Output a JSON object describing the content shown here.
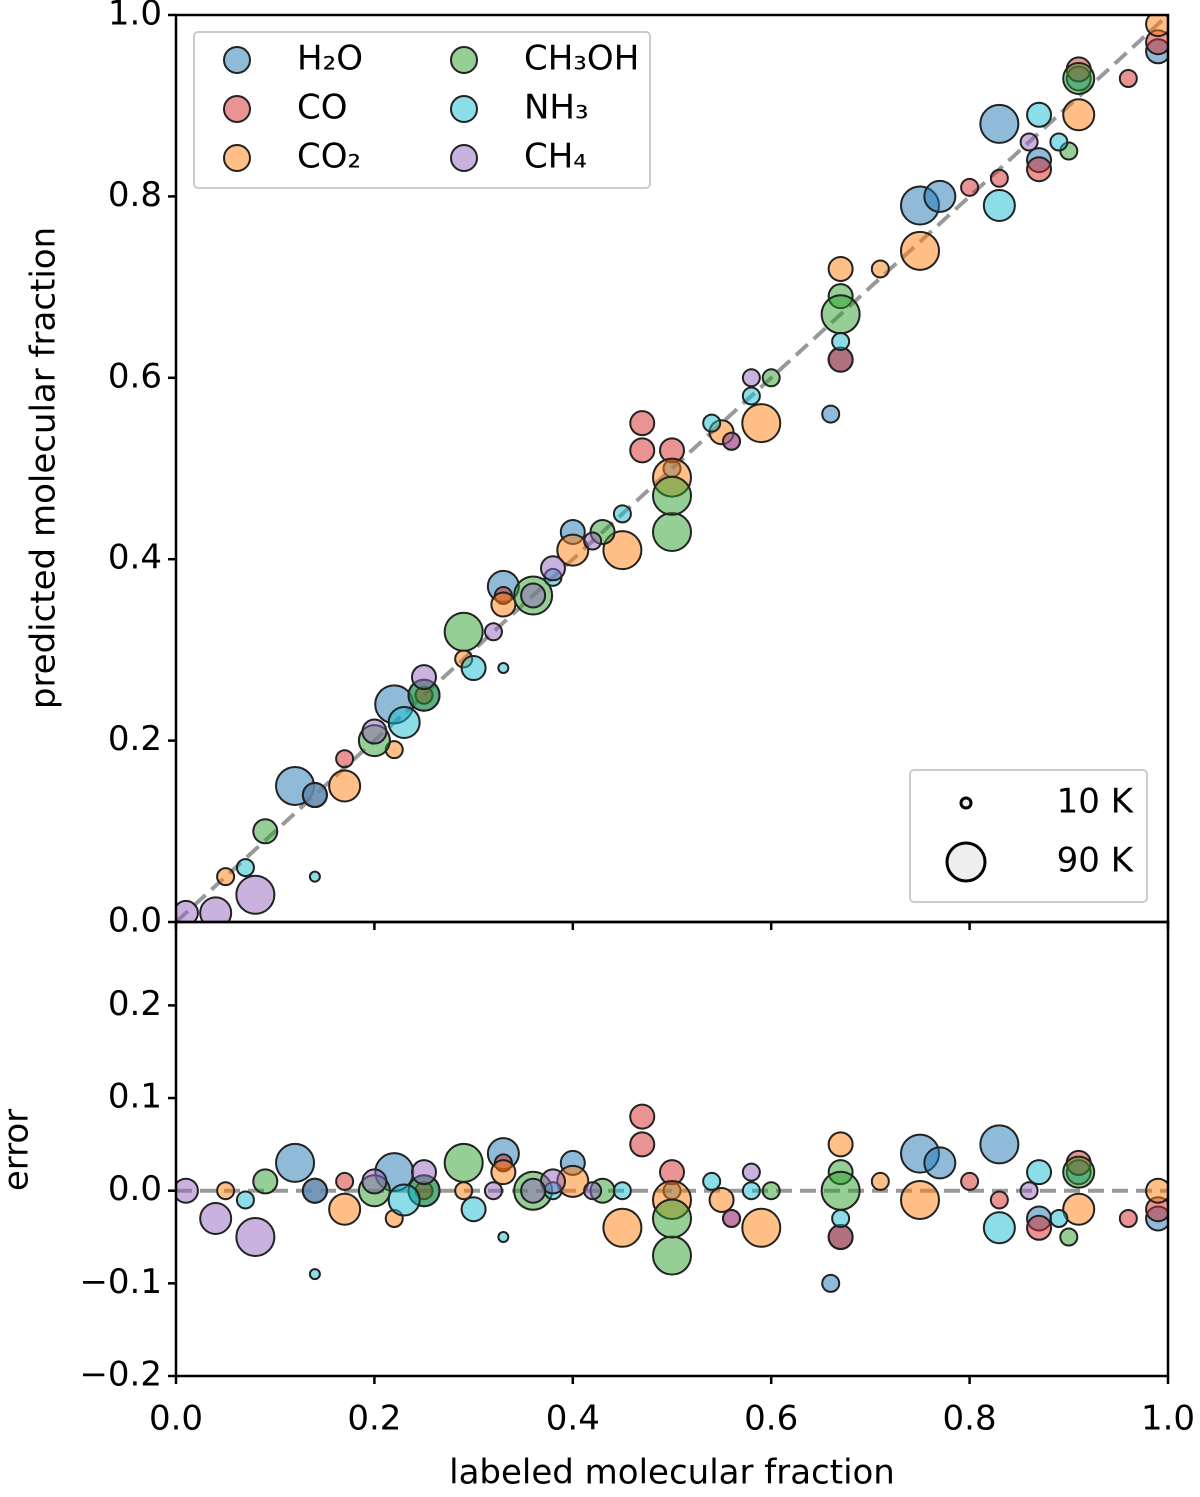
{
  "chart_data": [
    {
      "type": "scatter",
      "ylabel": "predicted molecular fraction",
      "xlim": [
        0,
        1
      ],
      "ylim": [
        0,
        1
      ],
      "xticks": [
        {
          "value": 0,
          "label": "0.0"
        },
        0.2,
        0.4,
        0.6,
        0.8,
        {
          "value": 1,
          "label": "1.0"
        }
      ],
      "yticks": [
        {
          "value": 0,
          "label": "0.0"
        },
        0.2,
        0.4,
        0.6,
        0.8,
        {
          "value": 1,
          "label": "1.0"
        }
      ],
      "legend": "upper left",
      "size_legend": [
        {
          "label": "10 K",
          "value": 10
        },
        {
          "label": "90 K",
          "value": 90
        }
      ],
      "series": [
        {
          "name": "H₂O",
          "color": "#1f77b4",
          "x": [
            0.12,
            0.22,
            0.33,
            0.4,
            0.5,
            0.67,
            0.75,
            0.77,
            0.83,
            0.87,
            0.91,
            0.99,
            0.66,
            0.25
          ],
          "y": [
            0.15,
            0.24,
            0.37,
            0.43,
            0.5,
            0.62,
            0.79,
            0.8,
            0.88,
            0.84,
            0.93,
            0.96,
            0.56,
            0.25
          ],
          "sizes": [
            90,
            90,
            70,
            50,
            30,
            50,
            90,
            70,
            90,
            50,
            50,
            50,
            30,
            70
          ]
        },
        {
          "name": "CO",
          "color": "#d62728",
          "x": [
            0.17,
            0.33,
            0.47,
            0.47,
            0.5,
            0.67,
            0.8,
            0.83,
            0.87,
            0.96,
            0.99,
            0.25,
            0.56,
            0.91
          ],
          "y": [
            0.18,
            0.36,
            0.55,
            0.52,
            0.52,
            0.62,
            0.81,
            0.82,
            0.83,
            0.93,
            0.97,
            0.25,
            0.53,
            0.94
          ],
          "sizes": [
            30,
            30,
            50,
            50,
            50,
            50,
            30,
            30,
            50,
            30,
            50,
            30,
            30,
            50
          ]
        },
        {
          "name": "CO₂",
          "color": "#ff7f0e",
          "x": [
            0.05,
            0.17,
            0.29,
            0.33,
            0.4,
            0.45,
            0.5,
            0.55,
            0.59,
            0.67,
            0.71,
            0.75,
            0.91,
            0.99,
            0.22
          ],
          "y": [
            0.05,
            0.15,
            0.29,
            0.35,
            0.41,
            0.41,
            0.49,
            0.54,
            0.55,
            0.72,
            0.72,
            0.74,
            0.89,
            0.99,
            0.19
          ],
          "sizes": [
            30,
            70,
            30,
            50,
            70,
            90,
            90,
            50,
            90,
            50,
            30,
            90,
            70,
            50,
            30
          ]
        },
        {
          "name": "CH₃OH",
          "color": "#2ca02c",
          "x": [
            0.09,
            0.14,
            0.2,
            0.29,
            0.36,
            0.43,
            0.5,
            0.5,
            0.67,
            0.67,
            0.91,
            0.9,
            0.25,
            0.6
          ],
          "y": [
            0.1,
            0.14,
            0.2,
            0.32,
            0.36,
            0.43,
            0.43,
            0.47,
            0.69,
            0.67,
            0.93,
            0.85,
            0.25,
            0.6
          ],
          "sizes": [
            50,
            50,
            70,
            90,
            90,
            50,
            90,
            90,
            50,
            90,
            70,
            30,
            70,
            30
          ]
        },
        {
          "name": "NH₃",
          "color": "#17becf",
          "x": [
            0.07,
            0.14,
            0.23,
            0.3,
            0.38,
            0.45,
            0.54,
            0.67,
            0.83,
            0.87,
            0.89,
            0.33,
            0.58,
            0.14
          ],
          "y": [
            0.06,
            0.14,
            0.22,
            0.28,
            0.38,
            0.45,
            0.55,
            0.64,
            0.79,
            0.89,
            0.86,
            0.28,
            0.58,
            0.05
          ],
          "sizes": [
            30,
            50,
            70,
            50,
            30,
            30,
            30,
            30,
            70,
            50,
            30,
            10,
            30,
            10
          ]
        },
        {
          "name": "CH₄",
          "color": "#9467bd",
          "x": [
            0.01,
            0.04,
            0.08,
            0.14,
            0.25,
            0.32,
            0.38,
            0.42,
            0.56,
            0.58,
            0.86,
            0.2,
            0.36
          ],
          "y": [
            0.01,
            0.01,
            0.03,
            0.14,
            0.27,
            0.32,
            0.39,
            0.42,
            0.53,
            0.6,
            0.86,
            0.21,
            0.36
          ],
          "sizes": [
            50,
            70,
            90,
            50,
            50,
            30,
            50,
            30,
            30,
            30,
            30,
            50,
            50
          ]
        }
      ]
    },
    {
      "type": "scatter",
      "xlabel": "labeled molecular fraction",
      "ylabel": "error",
      "xlim": [
        0,
        1
      ],
      "ylim": [
        -0.2,
        0.29
      ],
      "xticks": [
        {
          "value": 0,
          "label": "0.0"
        },
        0.2,
        0.4,
        0.6,
        0.8,
        {
          "value": 1,
          "label": "1.0"
        }
      ],
      "yticks": [
        {
          "value": -0.2,
          "label": "−0.2"
        },
        {
          "value": -0.1,
          "label": "−0.1"
        },
        {
          "value": 0,
          "label": "0.0"
        },
        0.1,
        0.2
      ],
      "series": [
        {
          "name": "H₂O",
          "color": "#1f77b4",
          "x": [
            0.12,
            0.22,
            0.33,
            0.4,
            0.5,
            0.67,
            0.75,
            0.77,
            0.83,
            0.87,
            0.91,
            0.99,
            0.66,
            0.25
          ],
          "y": [
            0.03,
            0.02,
            0.04,
            0.03,
            0.0,
            -0.05,
            0.04,
            0.03,
            0.05,
            -0.03,
            0.02,
            -0.03,
            -0.1,
            0.0
          ],
          "sizes": [
            90,
            90,
            70,
            50,
            30,
            50,
            90,
            70,
            90,
            50,
            50,
            50,
            30,
            70
          ]
        },
        {
          "name": "CO",
          "color": "#d62728",
          "x": [
            0.17,
            0.33,
            0.47,
            0.47,
            0.5,
            0.67,
            0.8,
            0.83,
            0.87,
            0.96,
            0.99,
            0.25,
            0.56,
            0.91
          ],
          "y": [
            0.01,
            0.03,
            0.08,
            0.05,
            0.02,
            -0.05,
            0.01,
            -0.01,
            -0.04,
            -0.03,
            -0.02,
            0.0,
            -0.03,
            0.03
          ],
          "sizes": [
            30,
            30,
            50,
            50,
            50,
            50,
            30,
            30,
            50,
            30,
            50,
            30,
            30,
            50
          ]
        },
        {
          "name": "CO₂",
          "color": "#ff7f0e",
          "x": [
            0.05,
            0.17,
            0.29,
            0.33,
            0.4,
            0.45,
            0.5,
            0.55,
            0.59,
            0.67,
            0.71,
            0.75,
            0.91,
            0.99,
            0.22
          ],
          "y": [
            0.0,
            -0.02,
            0.0,
            0.02,
            0.01,
            -0.04,
            -0.01,
            -0.01,
            -0.04,
            0.05,
            0.01,
            -0.01,
            -0.02,
            0.0,
            -0.03
          ],
          "sizes": [
            30,
            70,
            30,
            50,
            70,
            90,
            90,
            50,
            90,
            50,
            30,
            90,
            70,
            50,
            30
          ]
        },
        {
          "name": "CH₃OH",
          "color": "#2ca02c",
          "x": [
            0.09,
            0.14,
            0.2,
            0.29,
            0.36,
            0.43,
            0.5,
            0.5,
            0.67,
            0.67,
            0.91,
            0.9,
            0.25,
            0.6
          ],
          "y": [
            0.01,
            0.0,
            0.0,
            0.03,
            0.0,
            0.0,
            -0.07,
            -0.03,
            0.02,
            0.0,
            0.02,
            -0.05,
            0.0,
            0.0
          ],
          "sizes": [
            50,
            50,
            70,
            90,
            90,
            50,
            90,
            90,
            50,
            90,
            70,
            30,
            70,
            30
          ]
        },
        {
          "name": "NH₃",
          "color": "#17becf",
          "x": [
            0.07,
            0.14,
            0.23,
            0.3,
            0.38,
            0.45,
            0.54,
            0.67,
            0.83,
            0.87,
            0.89,
            0.33,
            0.58,
            0.14
          ],
          "y": [
            -0.01,
            0.0,
            -0.01,
            -0.02,
            0.0,
            0.0,
            0.01,
            -0.03,
            -0.04,
            0.02,
            -0.03,
            -0.05,
            0.0,
            -0.09
          ],
          "sizes": [
            30,
            50,
            70,
            50,
            30,
            30,
            30,
            30,
            70,
            50,
            30,
            10,
            30,
            10
          ]
        },
        {
          "name": "CH₄",
          "color": "#9467bd",
          "x": [
            0.01,
            0.04,
            0.08,
            0.14,
            0.25,
            0.32,
            0.38,
            0.42,
            0.56,
            0.58,
            0.86,
            0.2,
            0.36
          ],
          "y": [
            0.0,
            -0.03,
            -0.05,
            0.0,
            0.02,
            0.0,
            0.01,
            0.0,
            -0.03,
            0.02,
            0.0,
            0.01,
            0.0
          ],
          "sizes": [
            50,
            70,
            90,
            50,
            50,
            30,
            50,
            30,
            30,
            30,
            30,
            50,
            50
          ]
        }
      ]
    }
  ]
}
